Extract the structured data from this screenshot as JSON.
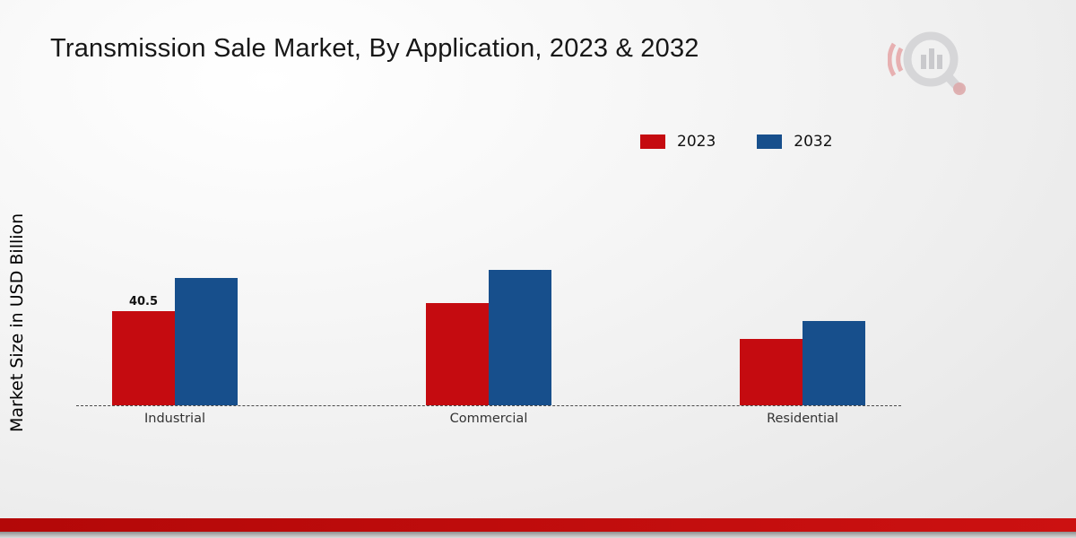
{
  "page": {
    "title": "Transmission Sale Market, By Application, 2023 & 2032"
  },
  "chart_data": {
    "type": "bar",
    "title": "Transmission Sale Market, By Application, 2023 & 2032",
    "xlabel": "",
    "ylabel": "Market Size in USD Billion",
    "categories": [
      "Industrial",
      "Commercial",
      "Residential"
    ],
    "series": [
      {
        "name": "2023",
        "color": "#c50b10",
        "values": [
          40.5,
          44,
          28.5
        ]
      },
      {
        "name": "2032",
        "color": "#174f8c",
        "values": [
          54.5,
          58,
          36
        ]
      }
    ],
    "ylim": [
      0,
      60
    ],
    "grid": false,
    "legend_position": "top-right",
    "annotations": [
      {
        "text": "40.5",
        "series": "2023",
        "category": "Industrial"
      }
    ]
  },
  "colors": {
    "series_2023": "#c50b10",
    "series_2032": "#174f8c",
    "footer_red": "#c00a0a",
    "footer_gray": "#9a9a9a"
  }
}
